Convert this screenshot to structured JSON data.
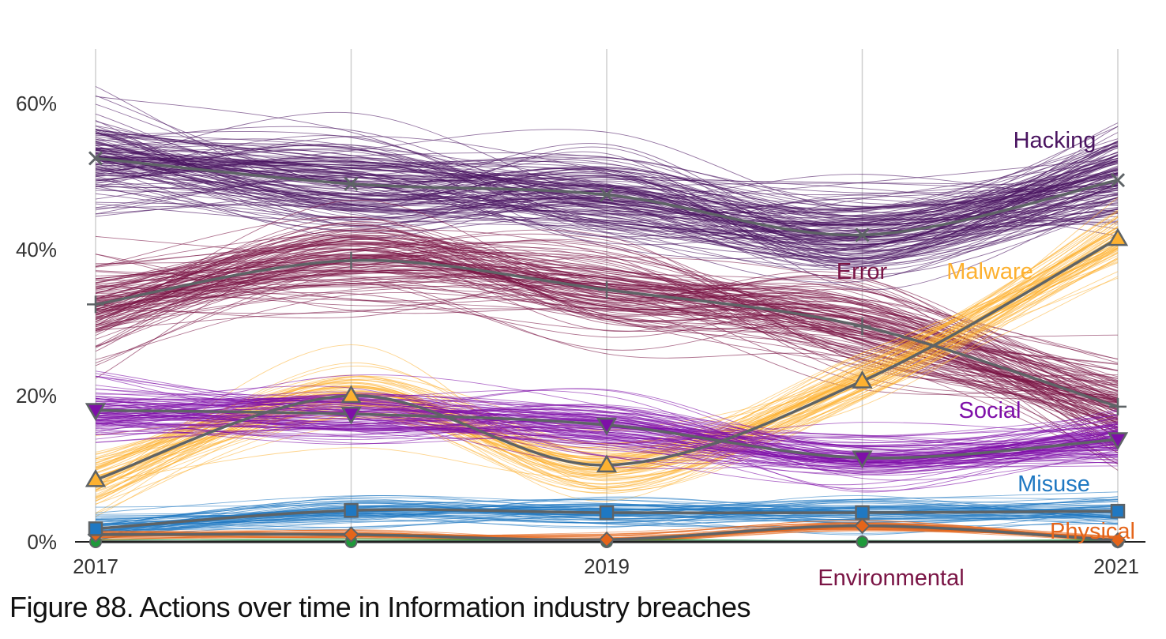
{
  "figure_caption": "Figure 88. Actions over time in Information industry breaches",
  "chart_data": {
    "type": "line",
    "x": [
      2017,
      2018,
      2019,
      2020,
      2021
    ],
    "x_tick_labels": [
      "2017",
      "2019",
      "2021"
    ],
    "y_tick_labels": [
      "0%",
      "20%",
      "40%",
      "60%"
    ],
    "ylim": [
      0,
      67
    ],
    "y_unit": "%",
    "grid": "vertical",
    "series": [
      {
        "name": "Hacking",
        "values": [
          52.5,
          49,
          47.5,
          42,
          49.5
        ],
        "color": "#4a1460",
        "marker": "x"
      },
      {
        "name": "Error",
        "values": [
          32.5,
          38.5,
          34.5,
          29.5,
          18.5
        ],
        "color": "#7a1445",
        "marker": "plus"
      },
      {
        "name": "Malware",
        "values": [
          8.5,
          20,
          10.5,
          22,
          41.5
        ],
        "color": "#fdb130",
        "marker": "triangle-up"
      },
      {
        "name": "Social",
        "values": [
          18,
          17.5,
          16,
          11.5,
          14
        ],
        "color": "#7e0fa8",
        "marker": "triangle-down"
      },
      {
        "name": "Misuse",
        "values": [
          1.8,
          4.3,
          4,
          4,
          4.2
        ],
        "color": "#1f78c2",
        "marker": "square"
      },
      {
        "name": "Physical",
        "values": [
          1,
          1,
          0.3,
          2.2,
          0.2
        ],
        "color": "#e5651a",
        "marker": "diamond"
      },
      {
        "name": "Environmental",
        "values": [
          0,
          0,
          0,
          0,
          0
        ],
        "color": "#1e9a3a",
        "marker": "circle"
      }
    ],
    "label_colors": {
      "Environmental": "#7a1445"
    }
  }
}
